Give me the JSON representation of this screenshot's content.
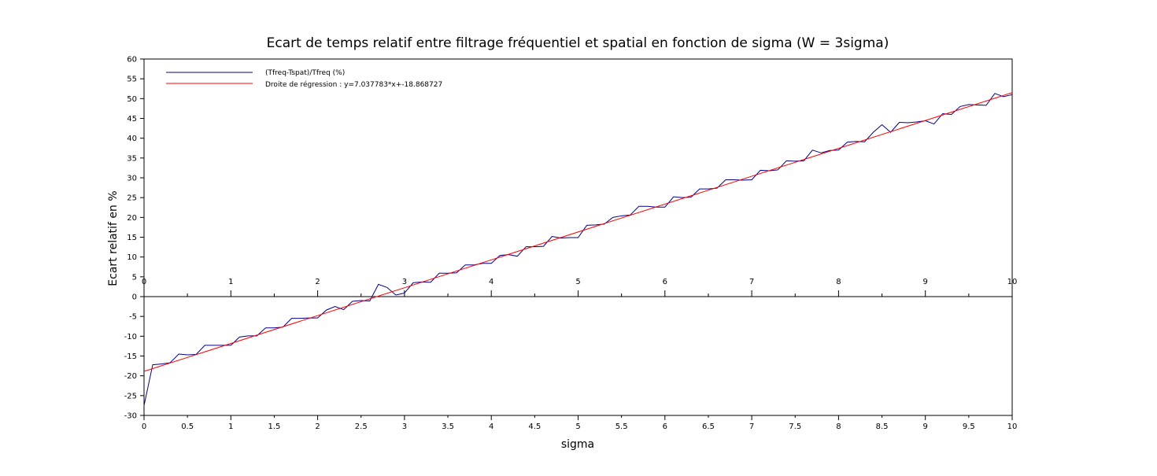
{
  "chart_data": {
    "type": "line",
    "title": "Ecart de temps relatif entre filtrage fréquentiel et spatial en fonction de sigma (W = 3sigma)",
    "xlabel": "sigma",
    "ylabel": "Ecart relatif en %",
    "xlim": [
      0,
      10
    ],
    "ylim": [
      -30,
      60
    ],
    "x_ticks": [
      0,
      0.5,
      1,
      1.5,
      2,
      2.5,
      3,
      3.5,
      4,
      4.5,
      5,
      5.5,
      6,
      6.5,
      7,
      7.5,
      8,
      8.5,
      9,
      9.5,
      10
    ],
    "x_tick_labels": [
      "0",
      "0.5",
      "1",
      "1.5",
      "2",
      "2.5",
      "3",
      "3.5",
      "4",
      "4.5",
      "5",
      "5.5",
      "6",
      "6.5",
      "7",
      "7.5",
      "8",
      "8.5",
      "9",
      "9.5",
      "10"
    ],
    "x_zero_axis_ticks": [
      0,
      1,
      2,
      3,
      4,
      5,
      6,
      7,
      8,
      9,
      10
    ],
    "x_zero_axis_tick_labels": [
      "0",
      "1",
      "2",
      "3",
      "4",
      "5",
      "6",
      "7",
      "8",
      "9",
      "10"
    ],
    "y_ticks": [
      -30,
      -25,
      -20,
      -15,
      -10,
      -5,
      0,
      5,
      10,
      15,
      20,
      25,
      30,
      35,
      40,
      45,
      50,
      55,
      60
    ],
    "y_tick_labels": [
      "-30",
      "-25",
      "-20",
      "-15",
      "-10",
      "-5",
      "0",
      "5",
      "10",
      "15",
      "20",
      "25",
      "30",
      "35",
      "40",
      "45",
      "50",
      "55",
      "60"
    ],
    "grid": false,
    "legend_position": "top-left",
    "series": [
      {
        "name": "(Tfreq-Tspat)/Tfreq (%)",
        "color": "#00008b",
        "x": [
          0,
          0.1,
          0.2,
          0.3,
          0.4,
          0.5,
          0.6,
          0.7,
          0.8,
          0.9,
          1.0,
          1.1,
          1.2,
          1.3,
          1.4,
          1.5,
          1.6,
          1.7,
          1.8,
          1.9,
          2.0,
          2.1,
          2.2,
          2.3,
          2.4,
          2.5,
          2.6,
          2.7,
          2.8,
          2.9,
          3.0,
          3.1,
          3.2,
          3.3,
          3.4,
          3.5,
          3.6,
          3.7,
          3.8,
          3.9,
          4.0,
          4.1,
          4.2,
          4.3,
          4.4,
          4.5,
          4.6,
          4.7,
          4.8,
          4.9,
          5.0,
          5.1,
          5.2,
          5.3,
          5.4,
          5.5,
          5.6,
          5.7,
          5.8,
          5.9,
          6.0,
          6.1,
          6.2,
          6.3,
          6.4,
          6.5,
          6.6,
          6.7,
          6.8,
          6.9,
          7.0,
          7.1,
          7.2,
          7.3,
          7.4,
          7.5,
          7.6,
          7.7,
          7.8,
          7.9,
          8.0,
          8.1,
          8.2,
          8.3,
          8.4,
          8.5,
          8.6,
          8.7,
          8.8,
          8.9,
          9.0,
          9.1,
          9.2,
          9.3,
          9.4,
          9.5,
          9.6,
          9.7,
          9.8,
          9.9,
          10.0
        ],
        "values": [
          -27.5,
          -17.2,
          -17.0,
          -16.7,
          -14.5,
          -14.7,
          -14.6,
          -12.3,
          -12.3,
          -12.3,
          -12.3,
          -10.2,
          -9.9,
          -9.9,
          -7.9,
          -7.9,
          -7.7,
          -5.5,
          -5.5,
          -5.4,
          -5.4,
          -3.4,
          -2.5,
          -3.3,
          -1.2,
          -1.0,
          -1.1,
          3.1,
          2.3,
          0.4,
          0.9,
          3.5,
          3.7,
          3.6,
          5.9,
          5.9,
          6.0,
          8.0,
          8.0,
          8.4,
          8.4,
          10.4,
          10.6,
          10.2,
          12.6,
          12.6,
          12.7,
          15.2,
          14.8,
          14.9,
          14.9,
          18.0,
          18.1,
          18.3,
          20.0,
          20.4,
          20.6,
          22.8,
          22.8,
          22.6,
          22.6,
          25.2,
          25.0,
          25.1,
          27.2,
          27.2,
          27.4,
          29.5,
          29.5,
          29.4,
          29.5,
          31.9,
          31.8,
          32.0,
          34.3,
          34.2,
          34.3,
          37.0,
          36.3,
          36.9,
          37.0,
          39.0,
          39.2,
          39.1,
          41.5,
          43.4,
          41.5,
          44.0,
          43.9,
          44.1,
          44.4,
          43.6,
          46.2,
          46.0,
          48.0,
          48.5,
          48.4,
          48.3,
          51.3,
          50.5,
          51.0
        ]
      },
      {
        "name": "Droite de régression : y=7.037783*x+-18.868727",
        "color": "#ff0000",
        "slope": 7.037783,
        "intercept": -18.868727,
        "x": [
          0,
          10
        ],
        "values": [
          -18.868727,
          51.509103
        ]
      }
    ]
  }
}
